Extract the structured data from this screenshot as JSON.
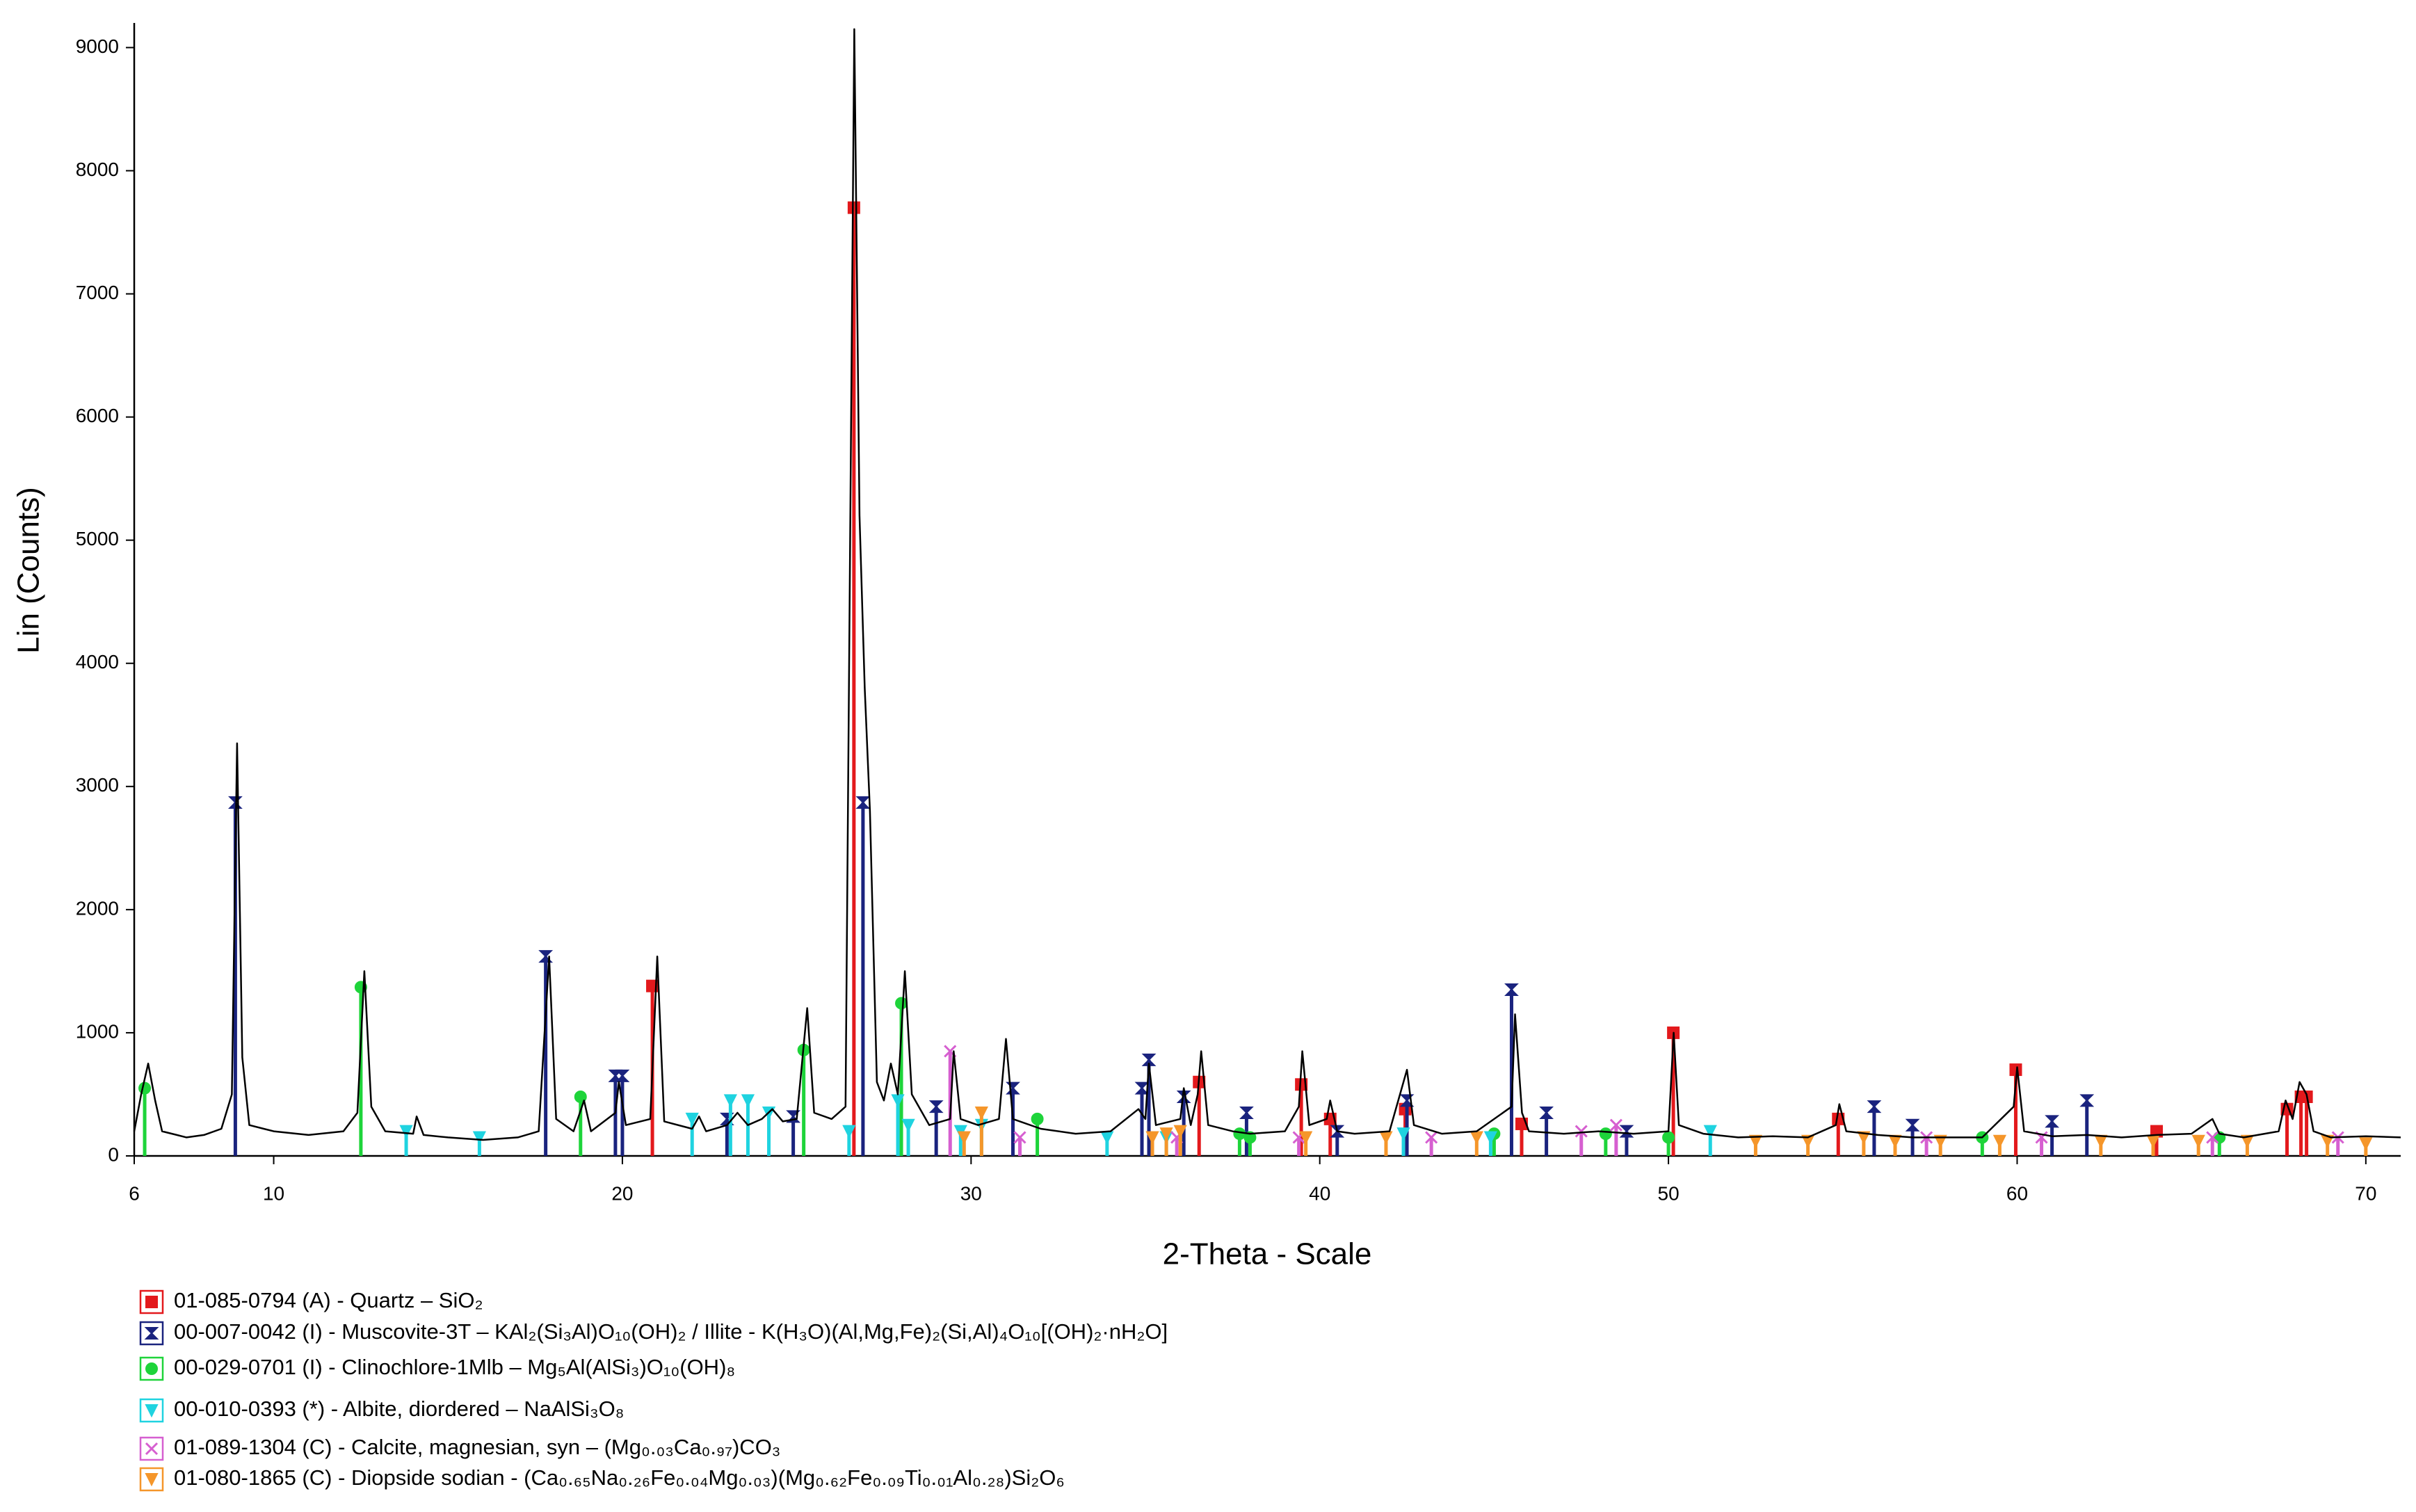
{
  "chart_data": {
    "type": "line",
    "xlabel": "2-Theta - Scale",
    "ylabel": "Lin (Counts)",
    "xlim": [
      6,
      71
    ],
    "ylim": [
      0,
      9200
    ],
    "xticks": [
      6,
      10,
      20,
      30,
      40,
      50,
      60,
      70
    ],
    "yticks": [
      0,
      1000,
      2000,
      3000,
      4000,
      5000,
      6000,
      7000,
      8000,
      9000
    ],
    "grid": false,
    "series": [
      {
        "name": null,
        "color": "#000000",
        "x": [
          6.0,
          6.2,
          6.4,
          6.6,
          6.8,
          7.5,
          8.0,
          8.5,
          8.8,
          8.95,
          9.1,
          9.3,
          10,
          11,
          12,
          12.4,
          12.6,
          12.8,
          13.2,
          14,
          14.1,
          14.3,
          15,
          16,
          17,
          17.6,
          17.9,
          18.1,
          18.6,
          18.9,
          19.1,
          19.8,
          19.9,
          20.1,
          20.8,
          21.0,
          21.2,
          22,
          22.2,
          22.4,
          23,
          23.3,
          23.6,
          24,
          24.3,
          24.6,
          25,
          25.3,
          25.5,
          26,
          26.4,
          26.65,
          26.8,
          26.95,
          27.1,
          27.3,
          27.5,
          27.7,
          27.9,
          28.1,
          28.3,
          28.8,
          29.4,
          29.5,
          29.7,
          30.2,
          30.8,
          31,
          31.2,
          32,
          33,
          34,
          34.8,
          35.0,
          35.1,
          35.3,
          36,
          36.1,
          36.3,
          36.5,
          36.6,
          36.8,
          37.5,
          38,
          39,
          39.4,
          39.5,
          39.7,
          40.2,
          40.3,
          40.5,
          41,
          42,
          42.5,
          42.7,
          43.5,
          44.5,
          45.5,
          45.6,
          45.8,
          46,
          47,
          48,
          49,
          50,
          50.15,
          50.3,
          51,
          52,
          53,
          54,
          54.8,
          54.9,
          55.1,
          56,
          57,
          58,
          59,
          59.9,
          60,
          60.2,
          61,
          62,
          63,
          64,
          65,
          65.6,
          65.8,
          66.5,
          67.5,
          67.7,
          67.9,
          68.1,
          68.3,
          68.5,
          69,
          70,
          71
        ],
        "values": [
          200,
          500,
          750,
          450,
          200,
          150,
          170,
          220,
          500,
          3350,
          800,
          250,
          200,
          170,
          200,
          350,
          1500,
          400,
          200,
          180,
          320,
          170,
          150,
          130,
          150,
          200,
          1620,
          300,
          200,
          450,
          200,
          350,
          600,
          250,
          300,
          1620,
          280,
          220,
          320,
          200,
          250,
          350,
          250,
          300,
          380,
          280,
          300,
          1200,
          350,
          300,
          400,
          9150,
          5200,
          3800,
          2800,
          600,
          450,
          750,
          500,
          1500,
          500,
          250,
          300,
          850,
          300,
          250,
          300,
          950,
          300,
          220,
          180,
          200,
          380,
          300,
          750,
          250,
          300,
          550,
          250,
          500,
          850,
          250,
          200,
          180,
          200,
          400,
          850,
          250,
          300,
          450,
          200,
          180,
          200,
          700,
          250,
          180,
          200,
          400,
          1150,
          350,
          200,
          180,
          200,
          180,
          200,
          1000,
          250,
          180,
          150,
          160,
          150,
          250,
          420,
          200,
          170,
          150,
          150,
          150,
          400,
          720,
          200,
          160,
          170,
          150,
          170,
          180,
          300,
          180,
          150,
          200,
          450,
          300,
          600,
          500,
          200,
          150,
          160,
          150
        ]
      }
    ],
    "phases": [
      {
        "name": "01-085-0794 (A) - Quartz – SiO₂",
        "color": "#e3191c",
        "marker": "square",
        "x": [
          20.86,
          26.64,
          36.54,
          39.47,
          40.3,
          42.45,
          45.79,
          50.14,
          54.87,
          59.96,
          64.0,
          67.74,
          68.14,
          68.3
        ],
        "values": [
          1380,
          7700,
          600,
          580,
          300,
          380,
          260,
          1000,
          300,
          700,
          200,
          380,
          480,
          480
        ]
      },
      {
        "name": "00-007-0042 (I) - Muscovite-3T – KAl₂(Si₃Al)O₁₀(OH)₂ / Illite - K(H₃O)(Al,Mg,Fe)₂(Si,Al)₄O₁₀[(OH)₂·nH₂O]",
        "color": "#1a237e",
        "marker": "hourglass",
        "x": [
          8.9,
          17.8,
          19.8,
          20.0,
          23.0,
          24.9,
          26.9,
          29.0,
          31.2,
          34.9,
          35.1,
          36.1,
          37.9,
          40.5,
          42.5,
          45.5,
          46.5,
          48.8,
          55.9,
          57.0,
          61.0,
          62.0
        ],
        "values": [
          2870,
          1620,
          650,
          650,
          300,
          320,
          2870,
          400,
          550,
          550,
          780,
          480,
          350,
          200,
          450,
          1350,
          350,
          200,
          400,
          250,
          280,
          450
        ]
      },
      {
        "name": "00-029-0701 (I) - Clinochlore-1Mlb – Mg₅Al(AlSi₃)O₁₀(OH)₈",
        "color": "#1ed43a",
        "marker": "circle",
        "x": [
          6.3,
          12.5,
          18.8,
          25.2,
          28.0,
          31.9,
          37.7,
          38.0,
          45.0,
          48.2,
          50.0,
          59.0,
          65.8
        ],
        "values": [
          550,
          1370,
          480,
          860,
          1240,
          300,
          180,
          150,
          180,
          180,
          150,
          150,
          150
        ]
      },
      {
        "name": "00-010-0393 (*) - Albite, diordered – NaAlSi₃O₈",
        "color": "#1fd3e0",
        "marker": "triangle-down",
        "x": [
          13.8,
          15.9,
          22.0,
          23.1,
          23.6,
          24.2,
          26.5,
          27.9,
          28.2,
          29.7,
          30.3,
          33.9,
          35.6,
          42.4,
          44.9,
          51.2
        ],
        "values": [
          200,
          150,
          300,
          450,
          450,
          350,
          200,
          450,
          250,
          200,
          250,
          150,
          150,
          180,
          150,
          200
        ]
      },
      {
        "name": "01-089-1304 (C) - Calcite, magnesian, syn – (Mg₀.₀₃Ca₀.₉₇)CO₃",
        "color": "#d65fd0",
        "marker": "cross",
        "x": [
          29.4,
          31.4,
          35.9,
          39.4,
          43.2,
          47.5,
          48.5,
          57.4,
          60.7,
          65.6,
          69.2
        ],
        "values": [
          850,
          150,
          150,
          150,
          150,
          200,
          250,
          150,
          150,
          150,
          150
        ]
      },
      {
        "name": "01-080-1865 (C) - Diopside sodian - (Ca₀.₆₅Na₀.₂₆Fe₀.₀₄Mg₀.₀₃)(Mg₀.₆₂Fe₀.₀₉Ti₀.₀₁Al₀.₂₈)Si₂O₆",
        "color": "#f5962a",
        "marker": "triangle-down",
        "x": [
          29.8,
          30.3,
          35.2,
          35.6,
          36.0,
          39.6,
          41.9,
          44.5,
          52.5,
          54.0,
          55.6,
          56.5,
          57.8,
          59.5,
          62.4,
          63.9,
          65.2,
          66.6,
          68.9,
          70.0
        ],
        "values": [
          150,
          350,
          150,
          180,
          200,
          150,
          150,
          150,
          120,
          120,
          150,
          120,
          120,
          120,
          120,
          120,
          120,
          120,
          120,
          100
        ]
      }
    ]
  }
}
